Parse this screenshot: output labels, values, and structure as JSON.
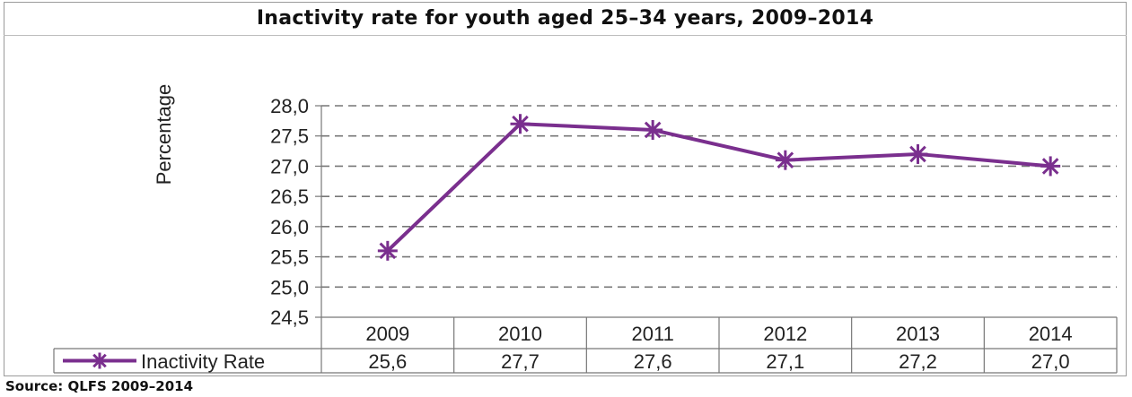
{
  "chart_data": {
    "type": "line",
    "title": "Inactivity rate for youth aged 25–34 years, 2009–2014",
    "ylabel": "Percentage",
    "xlabel": "",
    "categories": [
      "2009",
      "2010",
      "2011",
      "2012",
      "2013",
      "2014"
    ],
    "series": [
      {
        "name": "Inactivity Rate",
        "values": [
          25.6,
          27.7,
          27.6,
          27.1,
          27.2,
          27.0
        ],
        "value_labels": [
          "25,6",
          "27,7",
          "27,6",
          "27,1",
          "27,2",
          "27,0"
        ],
        "color": "#7a2f8e",
        "marker": "star"
      }
    ],
    "ylim": [
      24.5,
      28.0
    ],
    "yticks": [
      24.5,
      25.0,
      25.5,
      26.0,
      26.5,
      27.0,
      27.5,
      28.0
    ],
    "ytick_labels": [
      "24,5",
      "25,0",
      "25,5",
      "26,0",
      "26,5",
      "27,0",
      "27,5",
      "28,0"
    ],
    "grid": "dashed horizontal",
    "legend": "data table"
  },
  "source": "Source: QLFS 2009–2014"
}
